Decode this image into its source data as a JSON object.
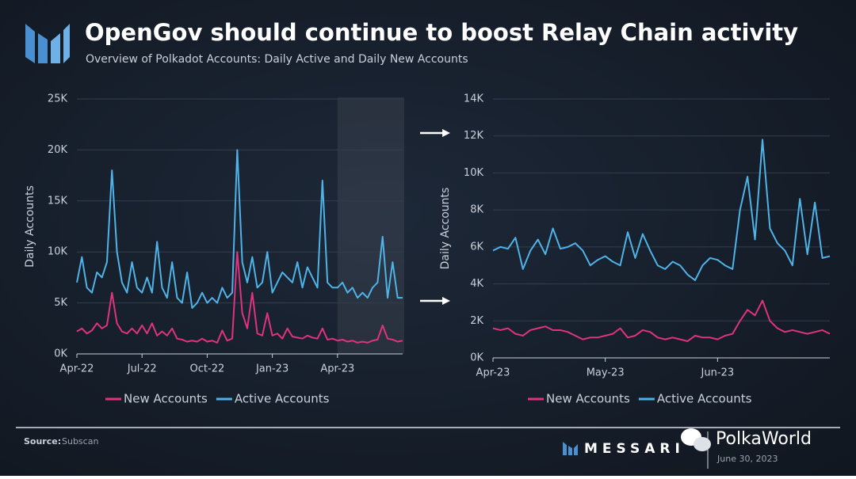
{
  "title": "OpenGov should continue to boost Relay Chain activity",
  "subtitle": "Overview of Polkadot Accounts: Daily Active and Daily New Accounts",
  "source_label": "Source:",
  "source": "Subscan",
  "brand": "MESSARI",
  "date": "June 30, 2023",
  "watermark": "PolkaWorld",
  "chart_data": [
    {
      "type": "line",
      "y_label": "Daily Accounts",
      "categories": [
        "Apr-22",
        null,
        null,
        null,
        null,
        null,
        null,
        null,
        null,
        null,
        null,
        null,
        null,
        "Jul-22",
        null,
        null,
        null,
        null,
        null,
        null,
        null,
        null,
        null,
        null,
        null,
        null,
        "Oct-22",
        null,
        null,
        null,
        null,
        null,
        null,
        null,
        null,
        null,
        null,
        null,
        null,
        "Jan-23",
        null,
        null,
        null,
        null,
        null,
        null,
        null,
        null,
        null,
        null,
        null,
        null,
        "Apr-23",
        null,
        null,
        null,
        null,
        null,
        null,
        null,
        null,
        null,
        null,
        null,
        null,
        null
      ],
      "ylim": [
        0,
        25000
      ],
      "yticks": [
        {
          "value": 0,
          "label": "0K"
        },
        {
          "value": 5000,
          "label": "5K"
        },
        {
          "value": 10000,
          "label": "10K"
        },
        {
          "value": 15000,
          "label": "15K"
        },
        {
          "value": 20000,
          "label": "20K"
        },
        {
          "value": 25000,
          "label": "25K"
        }
      ],
      "grid": true,
      "series": [
        {
          "name": "New Accounts",
          "color": "#e0337e",
          "values": [
            2200,
            2500,
            2000,
            2300,
            3000,
            2500,
            2800,
            6000,
            3000,
            2200,
            2000,
            2500,
            2000,
            2800,
            2000,
            3000,
            1800,
            2200,
            1800,
            2500,
            1500,
            1400,
            1200,
            1300,
            1200,
            1500,
            1200,
            1300,
            1100,
            2300,
            1300,
            1500,
            10000,
            4000,
            2500,
            6000,
            2000,
            1800,
            4000,
            1800,
            2000,
            1500,
            2500,
            1700,
            1600,
            1500,
            1800,
            1600,
            1500,
            2500,
            1400,
            1500,
            1300,
            1400,
            1200,
            1300,
            1100,
            1200,
            1100,
            1300,
            1400,
            2800,
            1500,
            1400,
            1200,
            1300
          ]
        },
        {
          "name": "Active Accounts",
          "color": "#4fb3e8",
          "values": [
            7000,
            9500,
            6500,
            6000,
            8000,
            7500,
            9000,
            18000,
            10000,
            7000,
            6000,
            9000,
            6500,
            6000,
            7500,
            6000,
            11000,
            6500,
            5500,
            9000,
            5500,
            5000,
            8000,
            4500,
            5000,
            6000,
            5000,
            5500,
            5000,
            6500,
            5500,
            6000,
            20000,
            9000,
            7000,
            9500,
            6500,
            7000,
            10000,
            6000,
            7000,
            8000,
            7500,
            7000,
            9000,
            6500,
            8500,
            7500,
            6500,
            17000,
            7000,
            6500,
            6500,
            7000,
            6000,
            6500,
            5500,
            6000,
            5500,
            6500,
            7000,
            11500,
            5500,
            9000,
            5500,
            5500
          ]
        }
      ]
    },
    {
      "type": "line",
      "y_label": "Daily Accounts",
      "categories": [
        "Apr-23",
        null,
        null,
        null,
        null,
        null,
        null,
        null,
        null,
        null,
        null,
        null,
        null,
        null,
        null,
        "May-23",
        null,
        null,
        null,
        null,
        null,
        null,
        null,
        null,
        null,
        null,
        null,
        null,
        null,
        null,
        "Jun-23",
        null,
        null,
        null,
        null,
        null,
        null,
        null,
        null,
        null,
        null,
        null,
        null,
        null,
        null,
        null
      ],
      "ylim": [
        0,
        14000
      ],
      "yticks": [
        {
          "value": 0,
          "label": "0K"
        },
        {
          "value": 2000,
          "label": "2K"
        },
        {
          "value": 4000,
          "label": "4K"
        },
        {
          "value": 6000,
          "label": "6K"
        },
        {
          "value": 8000,
          "label": "8K"
        },
        {
          "value": 10000,
          "label": "10K"
        },
        {
          "value": 12000,
          "label": "12K"
        },
        {
          "value": 14000,
          "label": "14K"
        }
      ],
      "grid": true,
      "series": [
        {
          "name": "New Accounts",
          "color": "#e0337e",
          "values": [
            1600,
            1500,
            1600,
            1300,
            1200,
            1500,
            1600,
            1700,
            1500,
            1500,
            1400,
            1200,
            1000,
            1100,
            1100,
            1200,
            1300,
            1600,
            1100,
            1200,
            1500,
            1400,
            1100,
            1000,
            1100,
            1000,
            900,
            1200,
            1100,
            1100,
            1000,
            1200,
            1300,
            2000,
            2600,
            2300,
            3100,
            2000,
            1600,
            1400,
            1500,
            1400,
            1300,
            1400,
            1500,
            1300
          ]
        },
        {
          "name": "Active Accounts",
          "color": "#4fb3e8",
          "values": [
            5800,
            6000,
            5900,
            6500,
            4800,
            5800,
            6400,
            5600,
            7000,
            5900,
            6000,
            6200,
            5800,
            5000,
            5300,
            5500,
            5200,
            5000,
            6800,
            5400,
            6700,
            5800,
            5000,
            4800,
            5200,
            5000,
            4500,
            4200,
            5000,
            5400,
            5300,
            5000,
            4800,
            8000,
            9800,
            6400,
            11800,
            7000,
            6200,
            5800,
            5000,
            8600,
            5600,
            8400,
            5400,
            5500
          ]
        }
      ]
    }
  ]
}
